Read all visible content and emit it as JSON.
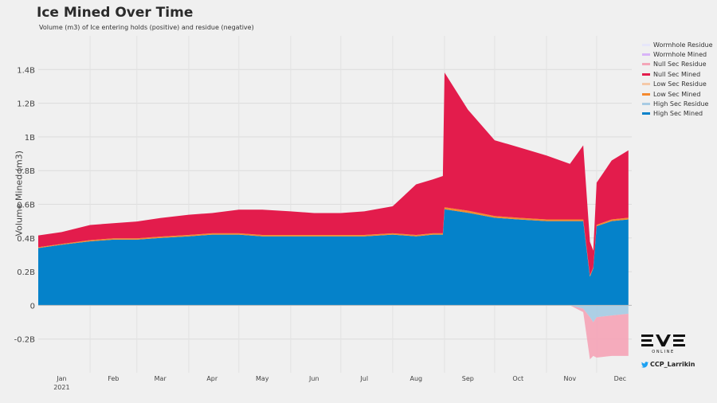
{
  "chart_data": {
    "type": "area",
    "title": "Ice Mined Over Time",
    "subtitle": "Volume (m3) of Ice entering holds (positive) and residue (negative)",
    "ylabel": "Volume Mined (m3)",
    "xlabel": "",
    "ylim": [
      -0.4,
      1.6
    ],
    "yticks": [
      -0.2,
      0,
      0.2,
      0.4,
      0.6,
      0.8,
      1.0,
      1.2,
      1.4
    ],
    "ytick_labels": [
      "-0.2B",
      "0",
      "0.2B",
      "0.4B",
      "0.6B",
      "0.8B",
      "1B",
      "1.2B",
      "1.4B"
    ],
    "months": [
      "Jan",
      "Feb",
      "Mar",
      "Apr",
      "May",
      "Jun",
      "Jul",
      "Aug",
      "Sep",
      "Oct",
      "Nov",
      "Dec"
    ],
    "year_label": "2021",
    "grid": true,
    "legend_position": "right",
    "x_weeks": [
      "2021-01-01",
      "2021-01-15",
      "2021-02-01",
      "2021-02-15",
      "2021-03-01",
      "2021-03-15",
      "2021-04-01",
      "2021-04-15",
      "2021-05-01",
      "2021-05-15",
      "2021-06-01",
      "2021-06-15",
      "2021-07-01",
      "2021-07-15",
      "2021-08-01",
      "2021-08-15",
      "2021-08-25",
      "2021-08-31",
      "2021-09-01",
      "2021-09-15",
      "2021-10-01",
      "2021-10-15",
      "2021-11-01",
      "2021-11-15",
      "2021-11-23",
      "2021-11-27",
      "2021-11-29",
      "2021-12-01",
      "2021-12-10",
      "2021-12-20"
    ],
    "series": [
      {
        "name": "Wormhole Residue",
        "color": "#e6e6fa",
        "values": [
          0,
          0,
          0,
          0,
          0,
          0,
          0,
          0,
          0,
          0,
          0,
          0,
          0,
          0,
          0,
          0,
          0,
          0,
          0,
          0,
          0,
          0,
          0,
          0,
          0,
          0,
          0,
          0,
          0,
          0
        ]
      },
      {
        "name": "Wormhole Mined",
        "color": "#d8b4f8",
        "values": [
          0,
          0,
          0,
          0,
          0,
          0,
          0,
          0,
          0,
          0,
          0,
          0,
          0,
          0,
          0,
          0,
          0,
          0,
          0,
          0,
          0,
          0,
          0,
          0,
          0,
          0,
          0,
          0,
          0,
          0
        ]
      },
      {
        "name": "Null Sec Residue",
        "color": "#f4a6b8",
        "values": [
          0,
          0,
          0,
          0,
          0,
          0,
          0,
          0,
          0,
          0,
          0,
          0,
          0,
          0,
          0,
          0,
          0,
          0,
          0,
          0,
          0,
          0,
          0,
          0,
          -0.02,
          -0.25,
          -0.2,
          -0.24,
          -0.24,
          -0.25
        ]
      },
      {
        "name": "Null Sec Mined",
        "color": "#e31c4c",
        "values": [
          0.07,
          0.07,
          0.09,
          0.09,
          0.1,
          0.11,
          0.12,
          0.12,
          0.14,
          0.15,
          0.14,
          0.13,
          0.13,
          0.14,
          0.16,
          0.3,
          0.32,
          0.34,
          0.8,
          0.6,
          0.45,
          0.42,
          0.38,
          0.33,
          0.44,
          0.2,
          0.1,
          0.25,
          0.35,
          0.4
        ]
      },
      {
        "name": "Low Sec Residue",
        "color": "#f5c9a8",
        "values": [
          0,
          0,
          0,
          0,
          0,
          0,
          0,
          0,
          0,
          0,
          0,
          0,
          0,
          0,
          0,
          0,
          0,
          0,
          0,
          0,
          0,
          0,
          0,
          0,
          0,
          0,
          0,
          0,
          0,
          0
        ]
      },
      {
        "name": "Low Sec Mined",
        "color": "#f58a2e",
        "values": [
          0.005,
          0.005,
          0.007,
          0.008,
          0.008,
          0.008,
          0.008,
          0.008,
          0.008,
          0.008,
          0.008,
          0.008,
          0.008,
          0.008,
          0.008,
          0.008,
          0.008,
          0.008,
          0.012,
          0.012,
          0.01,
          0.01,
          0.01,
          0.01,
          0.01,
          0.008,
          0.005,
          0.008,
          0.01,
          0.01
        ]
      },
      {
        "name": "High Sec Residue",
        "color": "#a8cce4",
        "values": [
          0,
          0,
          0,
          0,
          0,
          0,
          0,
          0,
          0,
          0,
          0,
          0,
          0,
          0,
          0,
          0,
          0,
          0,
          0,
          0,
          0,
          0,
          0,
          0,
          -0.02,
          -0.07,
          -0.1,
          -0.07,
          -0.06,
          -0.05
        ]
      },
      {
        "name": "High Sec Mined",
        "color": "#0582ca",
        "values": [
          0.34,
          0.36,
          0.38,
          0.39,
          0.39,
          0.4,
          0.41,
          0.42,
          0.42,
          0.41,
          0.41,
          0.41,
          0.41,
          0.41,
          0.42,
          0.41,
          0.42,
          0.42,
          0.57,
          0.55,
          0.52,
          0.51,
          0.5,
          0.5,
          0.5,
          0.17,
          0.22,
          0.47,
          0.5,
          0.51
        ]
      }
    ]
  },
  "legend": {
    "items": [
      {
        "label": "Wormhole Residue",
        "color": "#e6e6fa"
      },
      {
        "label": "Wormhole Mined",
        "color": "#d8b4f8"
      },
      {
        "label": "Null Sec Residue",
        "color": "#f4a6b8"
      },
      {
        "label": "Null Sec Mined",
        "color": "#e31c4c"
      },
      {
        "label": "Low Sec Residue",
        "color": "#f5c9a8"
      },
      {
        "label": "Low Sec Mined",
        "color": "#f58a2e"
      },
      {
        "label": "High Sec Residue",
        "color": "#a8cce4"
      },
      {
        "label": "High Sec Mined",
        "color": "#0582ca"
      }
    ]
  },
  "branding": {
    "logo_text": "EVE",
    "logo_subtext": "ONLINE",
    "twitter_handle": "CCP_Larrikin",
    "twitter_icon": "twitter-bird-icon"
  }
}
